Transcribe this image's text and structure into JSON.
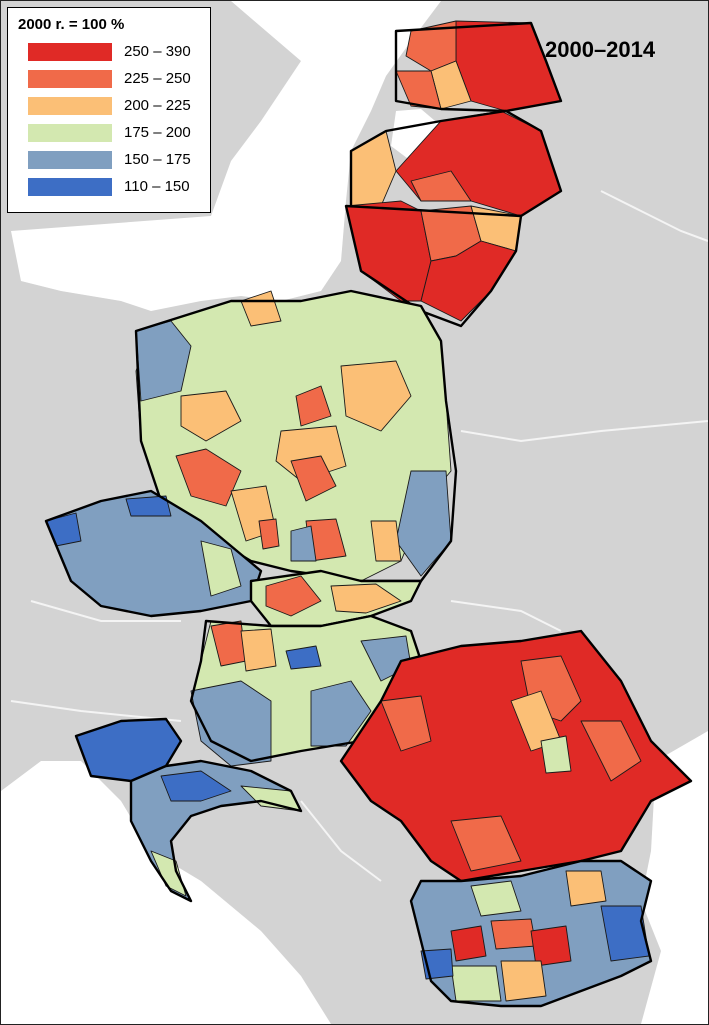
{
  "legend": {
    "title": "2000 r. = 100 %",
    "classes": [
      {
        "label": "250 – 390",
        "color": "#e02a26"
      },
      {
        "label": "225 – 250",
        "color": "#f06a49"
      },
      {
        "label": "200 – 225",
        "color": "#fbbf76"
      },
      {
        "label": "175 – 200",
        "color": "#d3e8b0"
      },
      {
        "label": "150 – 175",
        "color": "#809fc0"
      },
      {
        "label": "110 – 150",
        "color": "#3d6ec5"
      }
    ]
  },
  "period_label": "2000–2014",
  "colors": {
    "sea": "#ffffff",
    "land": "#d3d3d3",
    "border": "#000000"
  }
}
